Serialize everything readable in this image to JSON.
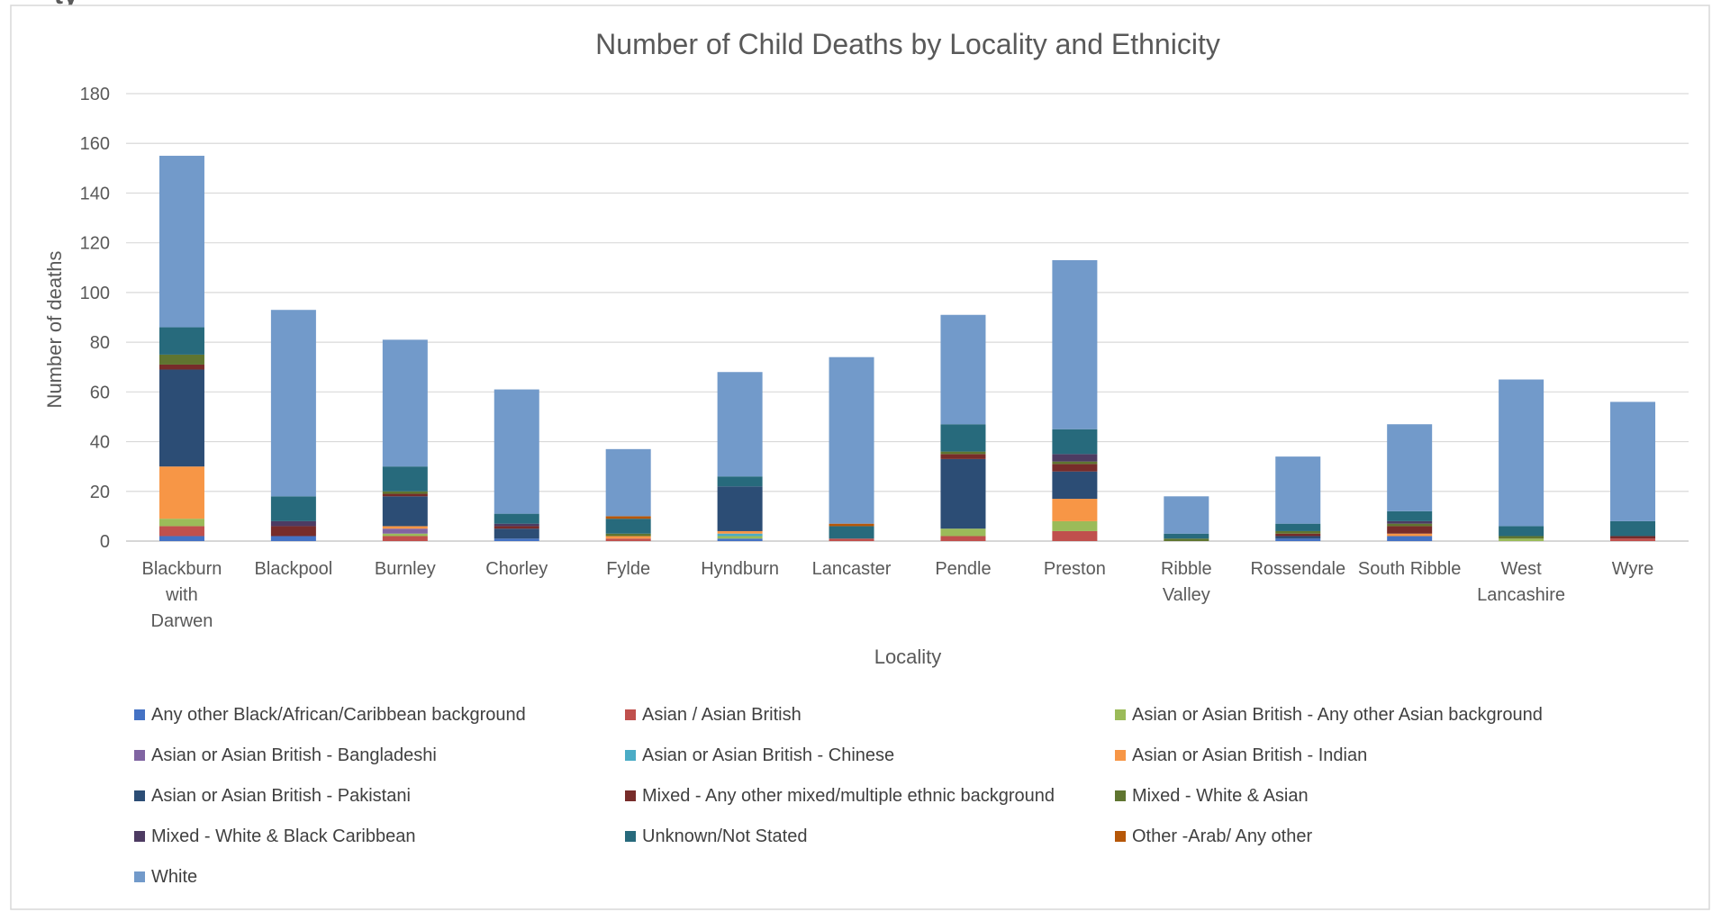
{
  "page_header_text": "ty",
  "chart_data": {
    "type": "bar",
    "stacked": true,
    "title": "Number of Child Deaths by Locality and Ethnicity",
    "xlabel": "Locality",
    "ylabel": "Number of deaths",
    "ylim": [
      0,
      180
    ],
    "yticks": [
      0,
      20,
      40,
      60,
      80,
      100,
      120,
      140,
      160,
      180
    ],
    "grid": true,
    "legend_position": "bottom",
    "categories": [
      [
        "Blackburn",
        "with",
        "Darwen"
      ],
      [
        "Blackpool"
      ],
      [
        "Burnley"
      ],
      [
        "Chorley"
      ],
      [
        "Fylde"
      ],
      [
        "Hyndburn"
      ],
      [
        "Lancaster"
      ],
      [
        "Pendle"
      ],
      [
        "Preston"
      ],
      [
        "Ribble",
        "Valley"
      ],
      [
        "Rossendale"
      ],
      [
        "South Ribble"
      ],
      [
        "West",
        "Lancashire"
      ],
      [
        "Wyre"
      ]
    ],
    "series": [
      {
        "name": "Any other Black/African/Caribbean background",
        "color": "#4472C4",
        "values": [
          2,
          2,
          0,
          1,
          0,
          1,
          0,
          0,
          0,
          0,
          1,
          2,
          0,
          0
        ]
      },
      {
        "name": "Asian / Asian British",
        "color": "#C0504D",
        "values": [
          4,
          0,
          2,
          0,
          1,
          0,
          1,
          2,
          4,
          0,
          0,
          0,
          0,
          1
        ]
      },
      {
        "name": "Asian or Asian British - Any other Asian background",
        "color": "#9BBB59",
        "values": [
          3,
          0,
          1,
          0,
          0,
          1,
          0,
          3,
          4,
          0,
          0,
          0,
          1,
          0
        ]
      },
      {
        "name": "Asian or Asian British - Bangladeshi",
        "color": "#8064A2",
        "values": [
          0,
          0,
          2,
          0,
          0,
          0,
          0,
          0,
          0,
          0,
          0,
          0,
          0,
          0
        ]
      },
      {
        "name": "Asian or Asian British - Chinese",
        "color": "#4BACC6",
        "values": [
          0,
          0,
          0,
          0,
          0,
          1,
          0,
          0,
          0,
          0,
          0,
          0,
          0,
          0
        ]
      },
      {
        "name": "Asian or Asian British - Indian",
        "color": "#F79646",
        "values": [
          21,
          0,
          1,
          0,
          1,
          1,
          0,
          0,
          9,
          0,
          0,
          1,
          0,
          0
        ]
      },
      {
        "name": "Asian or Asian British - Pakistani",
        "color": "#2C4D75",
        "values": [
          39,
          0,
          12,
          4,
          0,
          18,
          0,
          28,
          11,
          0,
          1,
          0,
          0,
          0
        ]
      },
      {
        "name": "Mixed - Any other mixed/multiple ethnic background",
        "color": "#772C2A",
        "values": [
          2,
          4,
          1,
          1,
          0,
          0,
          0,
          2,
          3,
          0,
          1,
          3,
          0,
          1
        ]
      },
      {
        "name": "Mixed - White & Asian",
        "color": "#5F7530",
        "values": [
          4,
          0,
          1,
          0,
          1,
          0,
          0,
          1,
          1,
          1,
          1,
          1,
          1,
          0
        ]
      },
      {
        "name": "Mixed - White & Black Caribbean",
        "color": "#4D3B62",
        "values": [
          0,
          2,
          0,
          1,
          0,
          0,
          0,
          0,
          3,
          0,
          0,
          1,
          0,
          0
        ]
      },
      {
        "name": "Unknown/Not Stated",
        "color": "#276A7C",
        "values": [
          11,
          10,
          10,
          4,
          6,
          4,
          5,
          11,
          10,
          2,
          3,
          4,
          4,
          6
        ]
      },
      {
        "name": "Other -Arab/ Any other",
        "color": "#B65708",
        "values": [
          0,
          0,
          0,
          0,
          1,
          0,
          1,
          0,
          0,
          0,
          0,
          0,
          0,
          0
        ]
      },
      {
        "name": "White",
        "color": "#729ACA",
        "values": [
          69,
          75,
          51,
          50,
          27,
          42,
          67,
          44,
          68,
          15,
          27,
          35,
          59,
          48
        ]
      }
    ],
    "legend_rows": [
      [
        "Any other Black/African/Caribbean background",
        "Asian / Asian British",
        "Asian or Asian British - Any other Asian background"
      ],
      [
        "Asian or Asian British - Bangladeshi",
        "Asian or Asian British - Chinese",
        "Asian or Asian British - Indian"
      ],
      [
        "Asian or Asian British - Pakistani",
        "Mixed - Any other mixed/multiple ethnic background",
        "Mixed - White & Asian"
      ],
      [
        "Mixed - White & Black Caribbean",
        "Unknown/Not Stated",
        "Other -Arab/ Any other"
      ],
      [
        "White"
      ]
    ]
  }
}
